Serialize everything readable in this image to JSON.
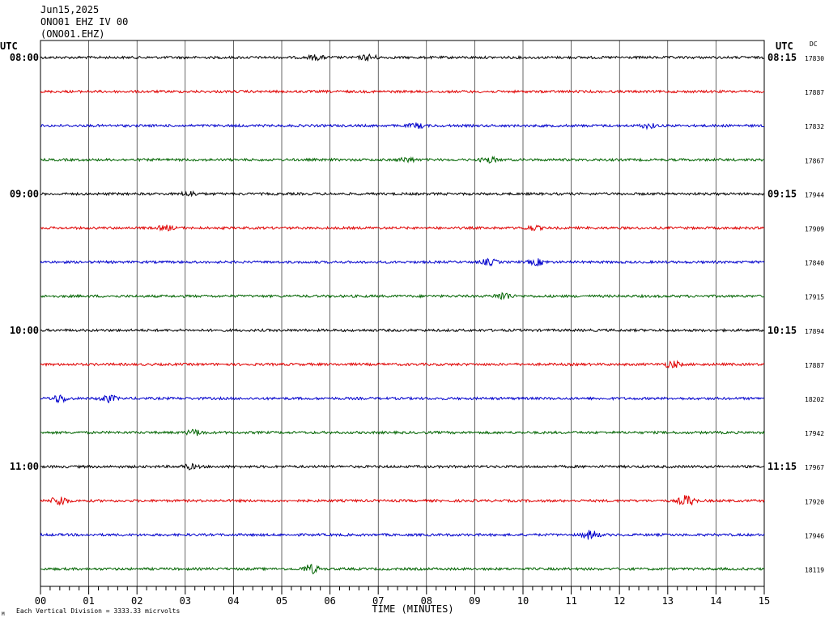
{
  "header": {
    "date": "Jun15,2025",
    "station": "ONO01 EHZ IV 00",
    "channel_code": "(ONO01.EHZ)"
  },
  "corner_labels": {
    "left": "UTC",
    "right": "UTC",
    "dc": "DC"
  },
  "footnote": "Each Vertical Division = 3333.33 micrvolts",
  "corner_mark": "M",
  "colors": {
    "trace_cycle": [
      "#000000",
      "#e00000",
      "#0000cc",
      "#006400"
    ],
    "grid": "#000000"
  },
  "chart_data": {
    "type": "line",
    "xlabel": "TIME (MINUTES)",
    "xlim": [
      0,
      15
    ],
    "x_ticks": [
      "00",
      "01",
      "02",
      "03",
      "04",
      "05",
      "06",
      "07",
      "08",
      "09",
      "10",
      "11",
      "12",
      "13",
      "14",
      "15"
    ],
    "rows": [
      {
        "left_time": "08:00",
        "right_time": "08:15",
        "dc": "17830",
        "events": [
          {
            "t": 5.7,
            "amp": 0.4
          },
          {
            "t": 6.8,
            "amp": 0.5
          }
        ]
      },
      {
        "left_time": "",
        "right_time": "",
        "dc": "17887",
        "events": []
      },
      {
        "left_time": "",
        "right_time": "",
        "dc": "17832",
        "events": [
          {
            "t": 7.8,
            "amp": 0.4
          },
          {
            "t": 12.6,
            "amp": 0.4
          }
        ]
      },
      {
        "left_time": "",
        "right_time": "",
        "dc": "17867",
        "events": [
          {
            "t": 7.6,
            "amp": 0.4
          },
          {
            "t": 9.3,
            "amp": 0.5
          }
        ]
      },
      {
        "left_time": "09:00",
        "right_time": "09:15",
        "dc": "17944",
        "events": [
          {
            "t": 3.1,
            "amp": 0.4
          }
        ]
      },
      {
        "left_time": "",
        "right_time": "",
        "dc": "17909",
        "events": [
          {
            "t": 2.6,
            "amp": 0.4
          },
          {
            "t": 10.2,
            "amp": 0.4
          }
        ]
      },
      {
        "left_time": "",
        "right_time": "",
        "dc": "17840",
        "events": [
          {
            "t": 9.3,
            "amp": 0.5
          },
          {
            "t": 10.3,
            "amp": 0.5
          }
        ]
      },
      {
        "left_time": "",
        "right_time": "",
        "dc": "17915",
        "events": [
          {
            "t": 9.6,
            "amp": 0.7
          }
        ]
      },
      {
        "left_time": "10:00",
        "right_time": "10:15",
        "dc": "17894",
        "events": []
      },
      {
        "left_time": "",
        "right_time": "",
        "dc": "17887",
        "events": [
          {
            "t": 13.1,
            "amp": 0.6
          }
        ]
      },
      {
        "left_time": "",
        "right_time": "",
        "dc": "18202",
        "events": [
          {
            "t": 0.4,
            "amp": 0.7
          },
          {
            "t": 1.4,
            "amp": 0.6
          }
        ]
      },
      {
        "left_time": "",
        "right_time": "",
        "dc": "17942",
        "events": [
          {
            "t": 3.2,
            "amp": 0.5
          }
        ]
      },
      {
        "left_time": "11:00",
        "right_time": "11:15",
        "dc": "17967",
        "events": [
          {
            "t": 3.1,
            "amp": 0.4
          }
        ]
      },
      {
        "left_time": "",
        "right_time": "",
        "dc": "17920",
        "events": [
          {
            "t": 0.4,
            "amp": 0.9
          },
          {
            "t": 13.4,
            "amp": 1.0
          }
        ]
      },
      {
        "left_time": "",
        "right_time": "",
        "dc": "17946",
        "events": [
          {
            "t": 11.4,
            "amp": 0.8
          }
        ]
      },
      {
        "left_time": "",
        "right_time": "",
        "dc": "18119",
        "events": [
          {
            "t": 5.6,
            "amp": 0.8
          }
        ]
      }
    ]
  }
}
